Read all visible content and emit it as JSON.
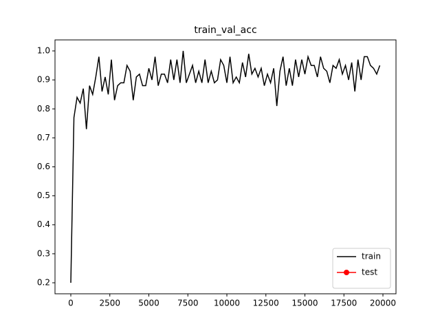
{
  "chart_data": {
    "type": "line",
    "title": "train_val_acc",
    "x": [
      0,
      200,
      400,
      600,
      800,
      1000,
      1200,
      1400,
      1600,
      1800,
      2000,
      2200,
      2400,
      2600,
      2800,
      3000,
      3200,
      3400,
      3600,
      3800,
      4000,
      4200,
      4400,
      4600,
      4800,
      5000,
      5200,
      5400,
      5600,
      5800,
      6000,
      6200,
      6400,
      6600,
      6800,
      7000,
      7200,
      7400,
      7600,
      7800,
      8000,
      8200,
      8400,
      8600,
      8800,
      9000,
      9200,
      9400,
      9600,
      9800,
      10000,
      10200,
      10400,
      10600,
      10800,
      11000,
      11200,
      11400,
      11600,
      11800,
      12000,
      12200,
      12400,
      12600,
      12800,
      13000,
      13200,
      13400,
      13600,
      13800,
      14000,
      14200,
      14400,
      14600,
      14800,
      15000,
      15200,
      15400,
      15600,
      15800,
      16000,
      16200,
      16400,
      16600,
      16800,
      17000,
      17200,
      17400,
      17600,
      17800,
      18000,
      18200,
      18400,
      18600,
      18800,
      19000,
      19200,
      19400,
      19600,
      19800
    ],
    "series": [
      {
        "name": "train",
        "color": "#000000",
        "values": [
          0.2,
          0.77,
          0.84,
          0.82,
          0.87,
          0.73,
          0.88,
          0.85,
          0.91,
          0.98,
          0.86,
          0.91,
          0.85,
          0.97,
          0.83,
          0.88,
          0.89,
          0.89,
          0.95,
          0.93,
          0.83,
          0.91,
          0.92,
          0.88,
          0.88,
          0.94,
          0.9,
          0.98,
          0.88,
          0.92,
          0.92,
          0.89,
          0.97,
          0.9,
          0.97,
          0.89,
          1.0,
          0.89,
          0.92,
          0.95,
          0.89,
          0.93,
          0.89,
          0.97,
          0.89,
          0.93,
          0.89,
          0.9,
          0.97,
          0.95,
          0.89,
          0.98,
          0.89,
          0.91,
          0.89,
          0.96,
          0.91,
          0.99,
          0.92,
          0.94,
          0.91,
          0.94,
          0.88,
          0.92,
          0.89,
          0.94,
          0.81,
          0.93,
          0.98,
          0.88,
          0.94,
          0.88,
          0.97,
          0.91,
          0.97,
          0.92,
          0.98,
          0.95,
          0.95,
          0.91,
          0.98,
          0.94,
          0.93,
          0.89,
          0.95,
          0.94,
          0.97,
          0.92,
          0.95,
          0.9,
          0.96,
          0.86,
          0.97,
          0.9,
          0.98,
          0.98,
          0.95,
          0.94,
          0.92,
          0.95
        ]
      },
      {
        "name": "test",
        "color": "#ff0000",
        "marker": "o",
        "values": [
          null,
          null,
          null,
          null,
          null,
          null,
          null,
          null,
          null,
          null,
          null,
          null,
          null,
          null,
          null,
          null,
          null,
          null,
          null,
          null,
          null,
          null,
          null,
          null,
          null,
          null,
          null,
          null,
          null,
          null,
          null,
          null,
          null,
          null,
          null,
          null,
          null,
          null,
          null,
          null,
          null,
          null,
          null,
          null,
          null,
          null,
          null,
          null,
          null,
          null,
          null,
          null,
          null,
          null,
          null,
          null,
          null,
          null,
          null,
          null,
          null,
          null,
          null,
          null,
          null,
          null,
          null,
          null,
          null,
          null,
          null,
          null,
          null,
          null,
          null,
          null,
          null,
          null,
          null,
          null,
          null,
          null,
          null,
          null,
          null,
          null,
          null,
          null,
          null,
          null,
          null,
          null,
          null,
          null,
          null,
          null,
          null,
          null,
          null,
          null
        ]
      }
    ],
    "xlim": [
      -1013,
      20837
    ],
    "ylim": [
      0.162,
      1.038
    ],
    "xticks": [
      0,
      2500,
      5000,
      7500,
      10000,
      12500,
      15000,
      17500,
      20000
    ],
    "yticks": [
      0.2,
      0.3,
      0.4,
      0.5,
      0.6,
      0.7,
      0.8,
      0.9,
      {
        "value": 1,
        "label": "1.0"
      }
    ],
    "legend": "lower right"
  }
}
